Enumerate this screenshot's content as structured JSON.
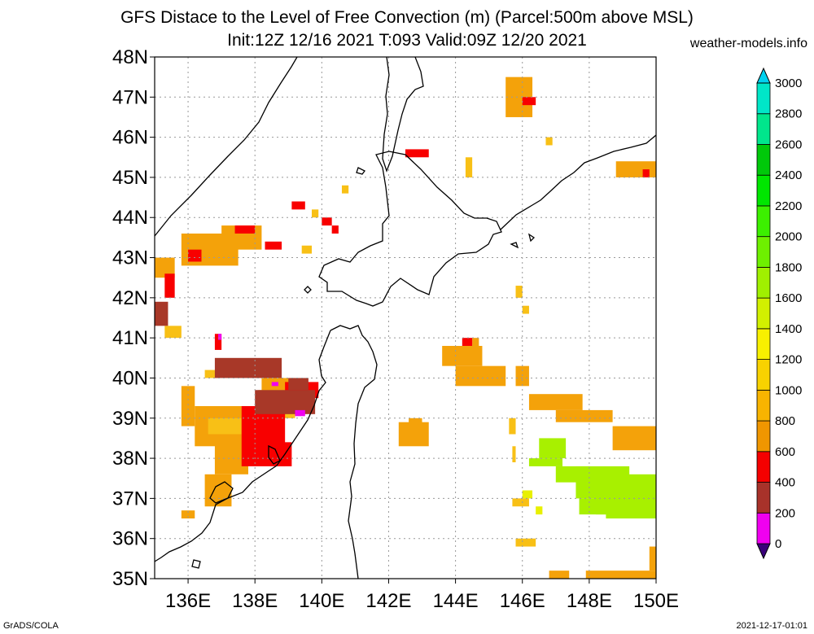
{
  "title_line1": "GFS Distace to the Level of Free Convection (m) (Parcel:500m above MSL)",
  "title_line2": "Init:12Z 12/16 2021 T:093 Valid:09Z 12/20 2021",
  "site": "weather-models.info",
  "footer_left": "GrADS/COLA",
  "footer_right": "2021-12-17-01:01",
  "map": {
    "lon_range": [
      135,
      150
    ],
    "lat_range": [
      35,
      48
    ],
    "lon_ticks": [
      "136E",
      "138E",
      "140E",
      "142E",
      "144E",
      "146E",
      "148E",
      "150E"
    ],
    "lon_tick_values": [
      136,
      138,
      140,
      142,
      144,
      146,
      148,
      150
    ],
    "lat_ticks": [
      "35N",
      "36N",
      "37N",
      "38N",
      "39N",
      "40N",
      "41N",
      "42N",
      "43N",
      "44N",
      "45N",
      "46N",
      "47N",
      "48N"
    ],
    "lat_tick_values": [
      35,
      36,
      37,
      38,
      39,
      40,
      41,
      42,
      43,
      44,
      45,
      46,
      47,
      48
    ]
  },
  "colorbar": {
    "labels": [
      "0",
      "200",
      "400",
      "600",
      "800",
      "1000",
      "1200",
      "1400",
      "1600",
      "1800",
      "2000",
      "2200",
      "2400",
      "2600",
      "2800",
      "3000"
    ],
    "colors": [
      "#3a007a",
      "#f000f0",
      "#a8322a",
      "#f40000",
      "#f09600",
      "#f8b400",
      "#f8d200",
      "#f8f000",
      "#d2f000",
      "#a0f000",
      "#6ef000",
      "#3cf000",
      "#00e600",
      "#00c80a",
      "#00e68c",
      "#00e6c8",
      "#00d2f0"
    ]
  },
  "fields": [
    {
      "value": "800",
      "color": "#f4a20a",
      "boxes": [
        [
          135,
          43,
          135.6,
          42.5
        ],
        [
          135.8,
          43.6,
          137.5,
          42.8
        ],
        [
          137,
          43.8,
          138.2,
          43.2
        ],
        [
          135.8,
          39.8,
          136.2,
          38.8
        ],
        [
          136.2,
          39.3,
          138.2,
          38.3
        ],
        [
          136.8,
          38.5,
          137.8,
          37.6
        ],
        [
          136.5,
          37.6,
          137.3,
          36.8
        ],
        [
          135.8,
          36.7,
          136.2,
          36.5
        ],
        [
          138.2,
          40.0,
          139.2,
          39.6
        ],
        [
          144.5,
          41,
          144.7,
          40.5
        ],
        [
          143.6,
          40.8,
          144.8,
          40.3
        ],
        [
          144,
          40.3,
          145.5,
          39.8
        ],
        [
          145.8,
          40.3,
          146.2,
          39.8
        ],
        [
          146.2,
          39.6,
          147.8,
          39.2
        ],
        [
          147,
          39.2,
          148.7,
          38.9
        ],
        [
          148.7,
          38.8,
          150,
          38.2
        ],
        [
          142.3,
          38.9,
          143.2,
          38.3
        ],
        [
          142.6,
          39.0,
          143.0,
          38.7
        ],
        [
          145.5,
          47.5,
          146.3,
          46.5
        ],
        [
          148.8,
          45.4,
          150,
          45.0
        ],
        [
          146.8,
          35.2,
          147.4,
          35
        ],
        [
          147.9,
          35.2,
          150,
          35
        ],
        [
          149.8,
          35.8,
          150,
          35.2
        ]
      ]
    },
    {
      "value": "1000",
      "color": "#f8c016",
      "boxes": [
        [
          136.6,
          39.0,
          137.6,
          38.6
        ],
        [
          145.6,
          39.0,
          145.8,
          38.6
        ],
        [
          145.8,
          36.0,
          146.4,
          35.8
        ],
        [
          145.7,
          37.0,
          146.2,
          36.8
        ],
        [
          145.7,
          38.3,
          145.8,
          37.9
        ],
        [
          146.7,
          46.0,
          146.9,
          45.8
        ],
        [
          144.3,
          45.5,
          144.5,
          45.0
        ],
        [
          140.6,
          44.8,
          140.8,
          44.6
        ],
        [
          139.4,
          43.3,
          139.7,
          43.1
        ],
        [
          139.7,
          44.2,
          139.9,
          44.0
        ],
        [
          145.8,
          42.3,
          146.0,
          42.0
        ],
        [
          146,
          41.8,
          146.2,
          41.6
        ],
        [
          135.3,
          41.3,
          135.8,
          41.0
        ],
        [
          136.5,
          40.2,
          136.9,
          40.0
        ],
        [
          138.1,
          39.7,
          139.2,
          39.0
        ]
      ]
    },
    {
      "value": "600",
      "color": "#f80000",
      "boxes": [
        [
          137.6,
          39.3,
          138.9,
          37.8
        ],
        [
          138.6,
          38.4,
          139.1,
          37.8
        ],
        [
          138.9,
          39.9,
          139.9,
          39.5
        ],
        [
          139.1,
          44.4,
          139.5,
          44.2
        ],
        [
          140.0,
          44.0,
          140.3,
          43.8
        ],
        [
          140.3,
          43.8,
          140.5,
          43.6
        ],
        [
          146.0,
          47.0,
          146.4,
          46.8
        ],
        [
          142.5,
          45.7,
          143.2,
          45.5
        ],
        [
          149.6,
          45.2,
          149.8,
          45.0
        ],
        [
          136.0,
          43.2,
          136.4,
          42.9
        ],
        [
          135.3,
          42.6,
          135.6,
          42.0
        ],
        [
          144.2,
          41.0,
          144.5,
          40.8
        ],
        [
          136.8,
          41.1,
          137.0,
          40.7
        ],
        [
          137.4,
          43.8,
          138.0,
          43.6
        ],
        [
          138.3,
          43.4,
          138.8,
          43.2
        ]
      ]
    },
    {
      "value": "400",
      "color": "#a83828",
      "boxes": [
        [
          135,
          41.9,
          135.4,
          41.3
        ],
        [
          136.8,
          40.5,
          138.8,
          40.0
        ],
        [
          138.0,
          39.7,
          139.8,
          39.1
        ],
        [
          139.0,
          40.0,
          139.6,
          39.7
        ]
      ]
    },
    {
      "value": "200",
      "color": "#f000f0",
      "boxes": [
        [
          136.9,
          41.1,
          137.0,
          40.95
        ],
        [
          138.5,
          39.9,
          138.7,
          39.8
        ],
        [
          139.2,
          39.2,
          139.5,
          39.05
        ]
      ]
    },
    {
      "value": "1400",
      "color": "#e8f000",
      "boxes": [
        [
          146.0,
          37.2,
          146.3,
          37.0
        ],
        [
          146.4,
          36.8,
          146.6,
          36.6
        ]
      ]
    },
    {
      "value": "1600",
      "color": "#a8f000",
      "boxes": [
        [
          146.5,
          38.5,
          147.3,
          38.0
        ],
        [
          146.2,
          38.0,
          147.2,
          37.8
        ],
        [
          147.0,
          37.8,
          148.0,
          37.4
        ],
        [
          147.6,
          37.8,
          149.2,
          37.0
        ],
        [
          148.2,
          37.6,
          150,
          36.6
        ],
        [
          147.7,
          37.0,
          149.0,
          36.6
        ],
        [
          148.5,
          36.8,
          150,
          36.5
        ]
      ]
    }
  ]
}
